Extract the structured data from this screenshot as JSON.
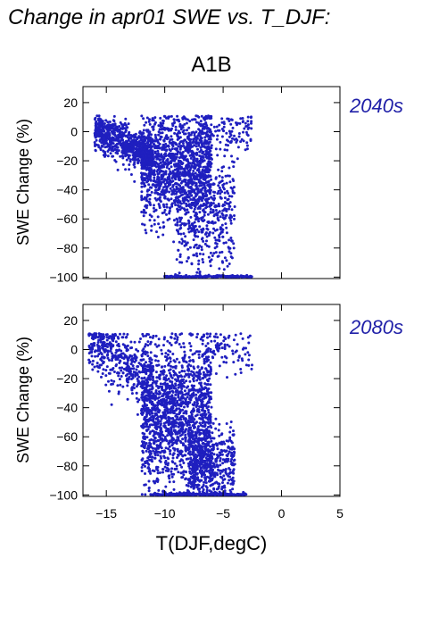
{
  "figure": {
    "title": "Change in apr01 SWE vs. T_DJF:",
    "scenario": "A1B",
    "xlabel": "T(DJF,degC)",
    "ylabel": "SWE Change (%)",
    "point_color": "#1f1fbf",
    "label_color": "#2020a8"
  },
  "chart_data": [
    {
      "type": "scatter",
      "label": "2040s",
      "xlim": [
        -17,
        5
      ],
      "ylim": [
        -101,
        31
      ],
      "x_ticks": [
        -15,
        -10,
        -5,
        0,
        5
      ],
      "y_ticks": [
        20,
        0,
        -20,
        -40,
        -60,
        -80,
        -100
      ],
      "x_tick_labels": [],
      "y_tick_labels": [
        "20",
        "0",
        "−20",
        "−40",
        "−60",
        "−80",
        "−100"
      ],
      "grid": false,
      "clusters": [
        {
          "x_range": [
            -16,
            -11
          ],
          "y_at_xmin": 0,
          "y_at_xmax": -15,
          "spread": 6,
          "count": 700
        },
        {
          "x_range": [
            -12,
            -6
          ],
          "y_center": -25,
          "spread": 18,
          "count": 1400
        },
        {
          "x_range": [
            -9,
            -4
          ],
          "y_center": -55,
          "spread": 22,
          "count": 450
        },
        {
          "x_range": [
            -7,
            -2.5
          ],
          "y_center": 0,
          "spread": 7,
          "count": 120
        },
        {
          "x_range": [
            -10,
            -2.5
          ],
          "y_center": -100,
          "spread": 0.6,
          "count": 220
        }
      ]
    },
    {
      "type": "scatter",
      "label": "2080s",
      "xlim": [
        -17,
        5
      ],
      "ylim": [
        -101,
        31
      ],
      "x_ticks": [
        -15,
        -10,
        -5,
        0,
        5
      ],
      "y_ticks": [
        20,
        0,
        -20,
        -40,
        -60,
        -80,
        -100
      ],
      "x_tick_labels": [
        "−15",
        "−10",
        "−5",
        "0",
        "5"
      ],
      "y_tick_labels": [
        "20",
        "0",
        "−20",
        "−40",
        "−60",
        "−80",
        "−100"
      ],
      "grid": false,
      "clusters": [
        {
          "x_range": [
            -16.5,
            -11
          ],
          "y_at_xmin": 5,
          "y_at_xmax": -20,
          "spread": 10,
          "count": 450
        },
        {
          "x_range": [
            -12,
            -6
          ],
          "y_center": -45,
          "spread": 25,
          "count": 1600
        },
        {
          "x_range": [
            -8,
            -4
          ],
          "y_center": -80,
          "spread": 12,
          "count": 500
        },
        {
          "x_range": [
            -7,
            -2.5
          ],
          "y_center": 0,
          "spread": 8,
          "count": 100
        },
        {
          "x_range": [
            -11,
            -3
          ],
          "y_center": -100,
          "spread": 0.7,
          "count": 250
        }
      ]
    }
  ]
}
